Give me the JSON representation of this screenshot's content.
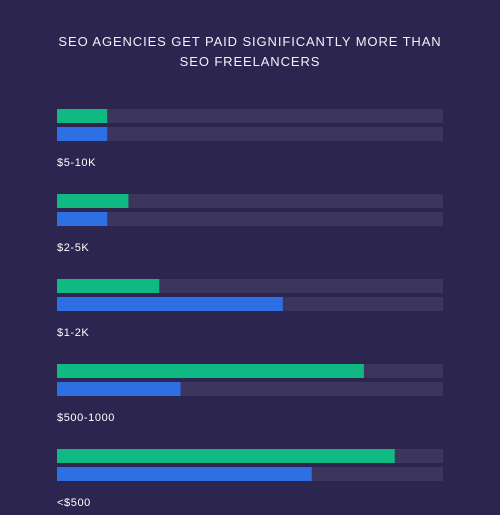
{
  "chart_data": {
    "type": "bar",
    "orientation": "horizontal",
    "title_lines": [
      "SEO AGENCIES GET PAID SIGNIFICANTLY MORE THAN",
      "SEO FREELANCERS"
    ],
    "categories": [
      "$5-10K",
      "$2-5K",
      "$1-2K",
      "$500-1000",
      "<$500"
    ],
    "series": [
      {
        "values": [
          13,
          18.5,
          26.5,
          79.5,
          87.5
        ]
      },
      {
        "values": [
          13,
          13,
          58.5,
          32,
          66
        ]
      }
    ],
    "xlim": [
      0,
      100
    ],
    "grid": false,
    "legend": "none"
  },
  "colors": {
    "background": "#2c2550",
    "track": "#3c355e",
    "series_1": "#10b981",
    "series_2": "#2f6fe4",
    "label": "#ffffff"
  }
}
